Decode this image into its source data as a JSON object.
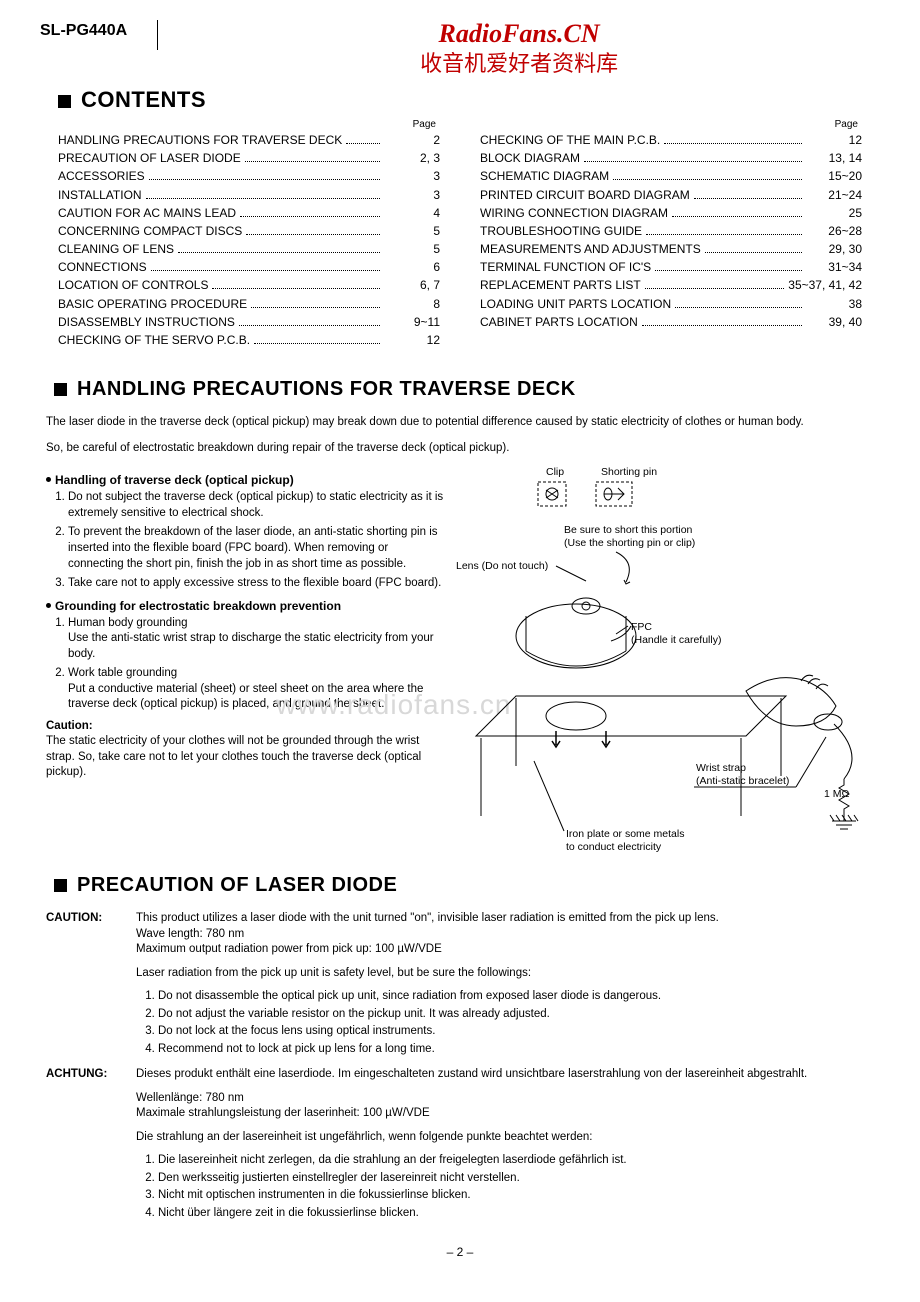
{
  "model": "SL-PG440A",
  "watermark_en": "RadioFans.CN",
  "watermark_cn": "收音机爱好者资料库",
  "watermark_mid": "www.radiofans.cn",
  "contents_title": "CONTENTS",
  "page_header": "Page",
  "toc_left": [
    {
      "label": "HANDLING PRECAUTIONS FOR TRAVERSE DECK",
      "page": "2"
    },
    {
      "label": "PRECAUTION OF LASER DIODE",
      "page": "2, 3"
    },
    {
      "label": "ACCESSORIES",
      "page": "3"
    },
    {
      "label": "INSTALLATION",
      "page": "3"
    },
    {
      "label": "CAUTION FOR AC MAINS LEAD",
      "page": "4"
    },
    {
      "label": "CONCERNING COMPACT DISCS",
      "page": "5"
    },
    {
      "label": "CLEANING OF LENS",
      "page": "5"
    },
    {
      "label": "CONNECTIONS",
      "page": "6"
    },
    {
      "label": "LOCATION OF CONTROLS",
      "page": "6, 7"
    },
    {
      "label": "BASIC OPERATING PROCEDURE",
      "page": "8"
    },
    {
      "label": "DISASSEMBLY INSTRUCTIONS",
      "page": "9~11"
    },
    {
      "label": "CHECKING OF THE SERVO P.C.B.",
      "page": "12"
    }
  ],
  "toc_right": [
    {
      "label": "CHECKING OF THE MAIN P.C.B.",
      "page": "12"
    },
    {
      "label": "BLOCK DIAGRAM",
      "page": "13, 14"
    },
    {
      "label": "SCHEMATIC DIAGRAM",
      "page": "15~20"
    },
    {
      "label": "PRINTED CIRCUIT BOARD DIAGRAM",
      "page": "21~24"
    },
    {
      "label": "WIRING CONNECTION DIAGRAM",
      "page": "25"
    },
    {
      "label": "TROUBLESHOOTING GUIDE",
      "page": "26~28"
    },
    {
      "label": "MEASUREMENTS AND ADJUSTMENTS",
      "page": "29, 30"
    },
    {
      "label": "TERMINAL FUNCTION OF IC'S",
      "page": "31~34"
    },
    {
      "label": "REPLACEMENT PARTS LIST",
      "page": "35~37, 41, 42"
    },
    {
      "label": "LOADING UNIT PARTS LOCATION",
      "page": "38"
    },
    {
      "label": "CABINET PARTS LOCATION",
      "page": "39, 40"
    }
  ],
  "sec1_title": "HANDLING PRECAUTIONS FOR TRAVERSE DECK",
  "sec1_intro1": "The laser diode in the traverse deck (optical pickup) may break down due to potential difference caused by static electricity of clothes or human body.",
  "sec1_intro2": "So, be careful of electrostatic breakdown during repair of the traverse deck (optical pickup).",
  "sub1": "Handling of traverse deck (optical pickup)",
  "sub1_items": [
    "Do not subject the traverse deck (optical pickup) to static electricity as it is extremely sensitive to electrical shock.",
    "To prevent the breakdown of the laser diode, an anti-static shorting pin is inserted into the flexible board (FPC board). When removing or connecting the short pin, finish the job in as short time as possible.",
    "Take care not to apply excessive stress to the flexible board (FPC board)."
  ],
  "sub2": "Grounding for electrostatic breakdown prevention",
  "sub2_1_h": "Human body grounding",
  "sub2_1_b": "Use the anti-static wrist strap to discharge the static electricity from your body.",
  "sub2_2_h": "Work table grounding",
  "sub2_2_b": "Put a conductive material (sheet) or steel sheet on the area where the traverse deck (optical pickup) is placed, and ground the sheet.",
  "caution_h": "Caution:",
  "caution_b": "The static electricity of your clothes will not be grounded through the wrist strap. So, take care not to let your clothes touch the traverse deck (optical pickup).",
  "diag": {
    "clip": "Clip",
    "shorting_pin": "Shorting pin",
    "short_note1": "Be sure to short this portion",
    "short_note2": "(Use the shorting pin or clip)",
    "lens": "Lens (Do not touch)",
    "fpc": "FPC",
    "fpc_note": "(Handle it carefully)",
    "wrist": "Wrist strap",
    "wrist_note": "(Anti-static bracelet)",
    "res": "1 MΩ",
    "plate1": "Iron plate or some metals",
    "plate2": "to conduct electricity"
  },
  "sec2_title": "PRECAUTION OF LASER DIODE",
  "caution_tag": "CAUTION:",
  "caution_p1": "This product utilizes a laser diode with the unit turned \"on\", invisible laser radiation is emitted from the pick up lens.",
  "caution_p2": "Wave length:  780 nm",
  "caution_p3": "Maximum output radiation power from pick up:  100 µW/VDE",
  "caution_p4": "Laser radiation from the pick up unit is safety level, but be sure the followings:",
  "caution_list": [
    "Do not disassemble the optical pick up unit, since radiation from exposed laser diode is dangerous.",
    "Do not adjust the variable resistor on the pickup unit. It was already adjusted.",
    "Do not lock at the focus lens using optical instruments.",
    "Recommend not to lock at pick up lens for a long time."
  ],
  "achtung_tag": "ACHTUNG:",
  "achtung_p1": "Dieses produkt enthält eine laserdiode. Im eingeschalteten zustand wird unsichtbare laserstrahlung von der lasereinheit abgestrahlt.",
  "achtung_p2": "Wellenlänge:  780 nm",
  "achtung_p3": "Maximale strahlungsleistung der laserinheit:  100 µW/VDE",
  "achtung_p4": "Die strahlung an der lasereinheit ist ungefährlich, wenn folgende punkte beachtet werden:",
  "achtung_list": [
    "Die lasereinheit nicht zerlegen, da die strahlung an der freigelegten laserdiode gefährlich ist.",
    "Den werksseitig justierten einstellregler der lasereinreit nicht verstellen.",
    "Nicht mit optischen instrumenten in die fokussierlinse blicken.",
    "Nicht über längere zeit in die fokussierlinse blicken."
  ],
  "page_num": "– 2 –"
}
